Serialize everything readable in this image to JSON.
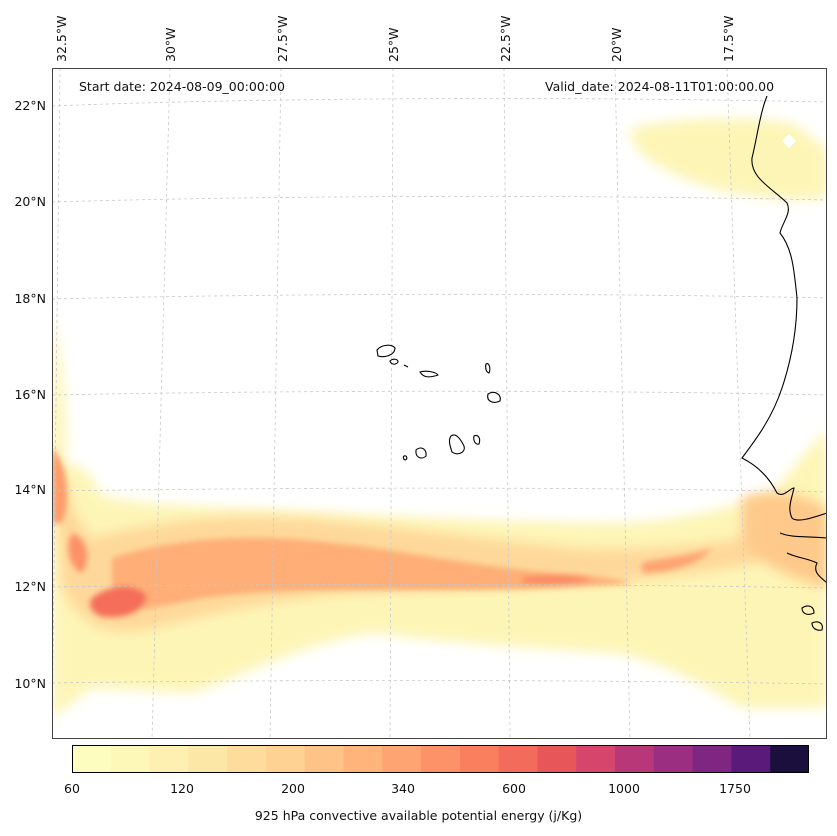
{
  "map": {
    "annotation_left": "Start date: 2024-08-09_00:00:00",
    "annotation_right": "Valid_date: 2024-08-11T01:00:00.00",
    "lon_labels": [
      "32.5°W",
      "30°W",
      "27.5°W",
      "25°W",
      "22.5°W",
      "20°W",
      "17.5°W"
    ],
    "lat_labels": [
      "22°N",
      "20°N",
      "18°N",
      "16°N",
      "14°N",
      "12°N",
      "10°N"
    ],
    "field": "925 hPa convective available potential energy (j/Kg)",
    "colormap": "magma_r",
    "gridlines": true
  },
  "colorbar": {
    "label": "925 hPa convective available potential energy (j/Kg)",
    "tick_labels": [
      "60",
      "120",
      "200",
      "340",
      "600",
      "1000",
      "1750"
    ],
    "colors": [
      "#fcfdbf",
      "#fdf7b8",
      "#fdf0b0",
      "#fde7a6",
      "#fedd9c",
      "#fed292",
      "#fec487",
      "#feb47b",
      "#fea372",
      "#fd9268",
      "#fa7f5e",
      "#f36b5a",
      "#e75759",
      "#d6456c",
      "#b73779",
      "#9b2e80",
      "#7f2582",
      "#5a1a7a",
      "#1b0f3d"
    ]
  }
}
